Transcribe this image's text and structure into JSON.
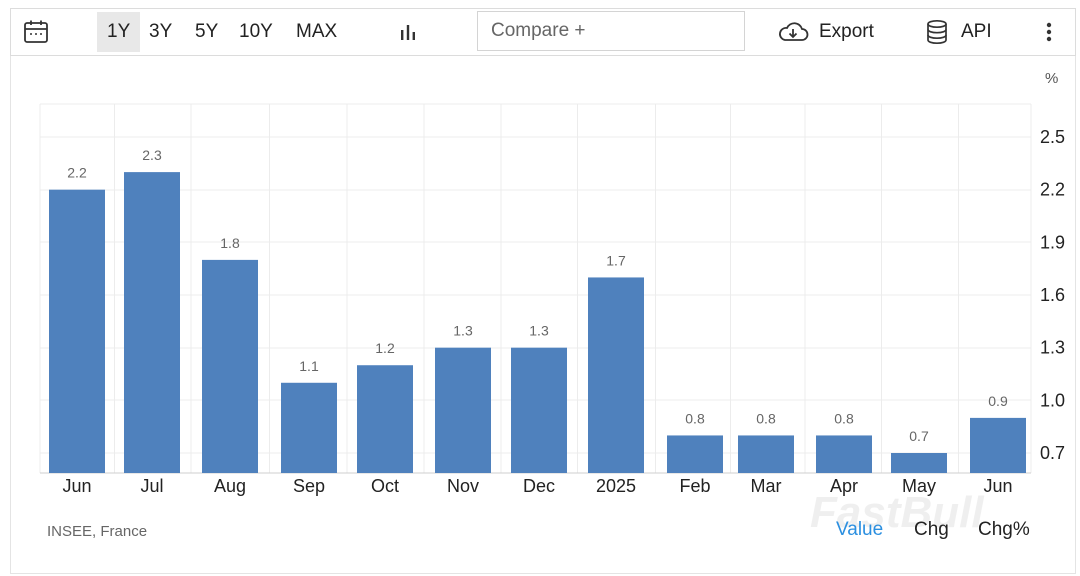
{
  "toolbar": {
    "calendar_icon": "calendar-icon",
    "ranges": [
      "1Y",
      "3Y",
      "5Y",
      "10Y",
      "MAX"
    ],
    "active_range": "1Y",
    "chart_type_icon": "bar-chart-icon",
    "compare_placeholder": "Compare +",
    "export_label": "Export",
    "export_icon": "cloud-download-icon",
    "api_label": "API",
    "api_icon": "database-icon",
    "more_icon": "more-vertical-icon"
  },
  "source": "INSEE, France",
  "view_tabs": [
    "Value",
    "Chg",
    "Chg%"
  ],
  "active_tab": "Value",
  "watermark": "FastBull",
  "colors": {
    "bar": "#4f81bd",
    "accent": "#2b8fe0"
  },
  "chart_data": {
    "type": "bar",
    "categories": [
      "Jun",
      "Jul",
      "Aug",
      "Sep",
      "Oct",
      "Nov",
      "Dec",
      "2025",
      "Feb",
      "Mar",
      "Apr",
      "May",
      "Jun"
    ],
    "values": [
      2.2,
      2.3,
      1.8,
      1.1,
      1.2,
      1.3,
      1.3,
      1.7,
      0.8,
      0.8,
      0.8,
      0.7,
      0.9
    ],
    "data_labels": [
      "2.2",
      "2.3",
      "1.8",
      "1.1",
      "1.2",
      "1.3",
      "1.3",
      "1.7",
      "0.8",
      "0.8",
      "0.8",
      "0.7",
      "0.9"
    ],
    "y_unit": "%",
    "y_ticks": [
      "2.5",
      "2.2",
      "1.9",
      "1.6",
      "1.3",
      "1.0",
      "0.7"
    ],
    "ylim": [
      0.6,
      2.7
    ],
    "grid": true,
    "y_axis_side": "right"
  }
}
